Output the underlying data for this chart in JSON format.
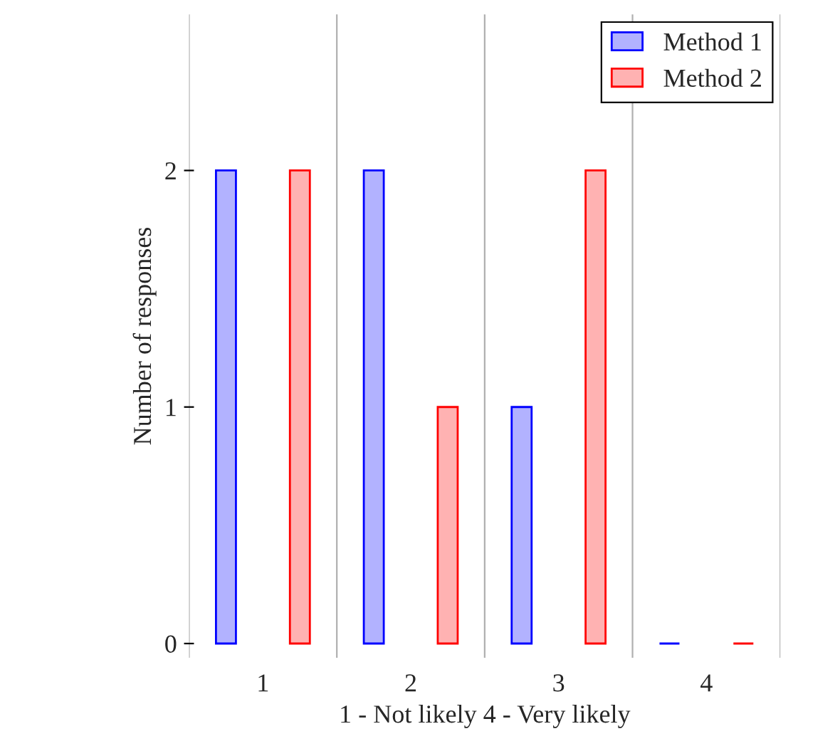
{
  "chart_data": {
    "type": "bar",
    "xlabel": "1 - Not likely 4 - Very likely",
    "ylabel": "Number of responses",
    "x": [
      1,
      2,
      3,
      4
    ],
    "xlim": [
      0.5,
      4.5
    ],
    "xticks": [
      {
        "value": 0.5,
        "label": null
      },
      1,
      {
        "value": 1.5,
        "label": null
      },
      2,
      {
        "value": 2.5,
        "label": null
      },
      3,
      {
        "value": 3.5,
        "label": null
      },
      4,
      {
        "value": 4.5,
        "label": null
      }
    ],
    "ylim": [
      -0.06,
      2.66
    ],
    "yticks": [
      0,
      1,
      2
    ],
    "series": [
      {
        "name": "Method 1",
        "color": "#0000ff",
        "values": [
          2,
          2,
          1,
          0
        ]
      },
      {
        "name": "Method 2",
        "color": "#ff0000",
        "values": [
          2,
          1,
          2,
          0
        ]
      }
    ],
    "grid": "x",
    "legend": "top right"
  }
}
